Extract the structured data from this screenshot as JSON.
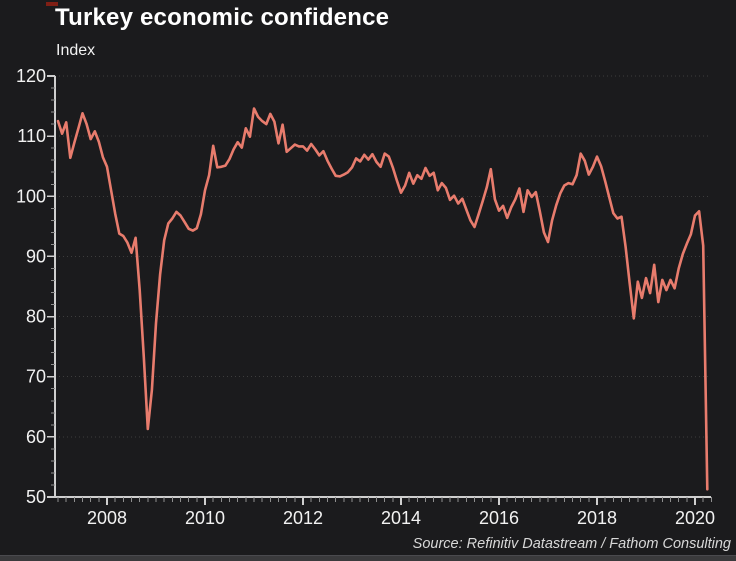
{
  "header": {
    "title": "Turkey economic confidence",
    "unit_label": "Index"
  },
  "footer": {
    "source": "Source: Refinitiv Datastream / Fathom Consulting"
  },
  "colors": {
    "background": "#1b1b1d",
    "line": "#e87c6d",
    "grid": "#3d3d3d",
    "axis_major": "#cfcfcf",
    "axis_minor": "#8f8f8f",
    "text": "#f2f2f2",
    "source_text": "#d8d8d8",
    "top_dash": "#7f1f15",
    "bottom_strip": "#3a3a3c"
  },
  "chart_data": {
    "type": "line",
    "title": "Turkey economic confidence",
    "xlabel": "",
    "ylabel": "Index",
    "ylim": [
      50,
      120
    ],
    "y_major_step": 10,
    "y_minor_step": 2,
    "y_tick_labels": [
      "120",
      "110",
      "100",
      "90",
      "80",
      "70",
      "60",
      "50"
    ],
    "x_axis_labels": [
      "2008",
      "2010",
      "2012",
      "2014",
      "2016",
      "2018",
      "2020"
    ],
    "x_minor_step_months": 2,
    "x_start_year": 2007,
    "x_start_month": 1,
    "x_end": "2020-04",
    "frequency": "monthly",
    "grid": "horizontal dotted at major y ticks",
    "legend_position": "none",
    "series": [
      {
        "name": "Turkey economic confidence index",
        "values": [
          112.5,
          110.4,
          112.3,
          106.4,
          108.9,
          111.3,
          113.8,
          112.0,
          109.5,
          110.8,
          109.1,
          106.5,
          104.9,
          101.0,
          97.1,
          93.8,
          93.4,
          92.3,
          90.6,
          93.1,
          84.4,
          73.3,
          61.3,
          67.8,
          78.9,
          87.0,
          92.7,
          95.5,
          96.3,
          97.4,
          96.8,
          95.7,
          94.6,
          94.3,
          94.7,
          97.0,
          101.0,
          103.5,
          108.4,
          104.8,
          104.9,
          105.1,
          106.2,
          107.8,
          109.0,
          108.1,
          111.3,
          109.9,
          114.6,
          113.2,
          112.5,
          112.0,
          113.7,
          112.4,
          108.8,
          111.9,
          107.4,
          108.0,
          108.6,
          108.3,
          108.3,
          107.6,
          108.7,
          107.8,
          106.8,
          107.5,
          105.9,
          104.6,
          103.4,
          103.3,
          103.6,
          104.0,
          104.8,
          106.3,
          105.8,
          106.9,
          106.1,
          107.0,
          105.7,
          104.9,
          107.1,
          106.6,
          104.8,
          102.6,
          100.6,
          101.8,
          103.9,
          102.1,
          103.5,
          102.9,
          104.7,
          103.4,
          103.9,
          101.0,
          102.2,
          101.4,
          99.4,
          100.1,
          98.8,
          99.6,
          97.8,
          96.0,
          94.9,
          97.0,
          99.2,
          101.5,
          104.5,
          99.5,
          97.6,
          98.4,
          96.4,
          98.2,
          99.5,
          101.3,
          97.4,
          101.0,
          99.9,
          100.7,
          97.5,
          94.0,
          92.4,
          96.0,
          98.5,
          100.5,
          101.8,
          102.2,
          102.0,
          103.5,
          107.1,
          105.9,
          103.6,
          104.9,
          106.6,
          105.0,
          102.5,
          99.8,
          97.2,
          96.3,
          96.6,
          91.6,
          85.5,
          79.7,
          85.8,
          83.1,
          86.4,
          83.9,
          88.6,
          82.4,
          86.1,
          84.4,
          86.1,
          84.7,
          88.0,
          90.4,
          92.1,
          93.7,
          96.8,
          97.5,
          91.8,
          51.3
        ]
      }
    ]
  }
}
